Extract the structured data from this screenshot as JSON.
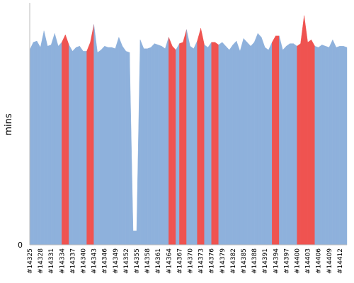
{
  "chart_data": {
    "type": "area",
    "ylabel": "mins",
    "y_ticks": [
      "0"
    ],
    "ylim": [
      0,
      19
    ],
    "colors": {
      "success": "#8eb1dc",
      "failure": "#ef5350",
      "axis": "#bbbbbb"
    },
    "x_tick_labels": [
      "#14325",
      "#14328",
      "#14331",
      "#14334",
      "#14337",
      "#14340",
      "#14343",
      "#14346",
      "#14349",
      "#14352",
      "#14355",
      "#14358",
      "#14361",
      "#14364",
      "#14367",
      "#14370",
      "#14373",
      "#14376",
      "#14379",
      "#14382",
      "#14385",
      "#14388",
      "#14391",
      "#14394",
      "#14397",
      "#14400",
      "#14403",
      "#14406",
      "#14409",
      "#14412"
    ],
    "x": [
      14325,
      14326,
      14327,
      14328,
      14329,
      14330,
      14331,
      14332,
      14333,
      14334,
      14335,
      14336,
      14337,
      14338,
      14339,
      14340,
      14341,
      14342,
      14343,
      14344,
      14345,
      14346,
      14347,
      14348,
      14349,
      14350,
      14351,
      14352,
      14353,
      14354,
      14355,
      14356,
      14357,
      14358,
      14359,
      14360,
      14361,
      14362,
      14363,
      14364,
      14365,
      14366,
      14367,
      14368,
      14369,
      14370,
      14371,
      14372,
      14373,
      14374,
      14375,
      14376,
      14377,
      14378,
      14379,
      14380,
      14381,
      14382,
      14383,
      14384,
      14385,
      14386,
      14387,
      14388,
      14389,
      14390,
      14391,
      14392,
      14393,
      14394,
      14395,
      14396,
      14397,
      14398,
      14399,
      14400,
      14401,
      14402,
      14403,
      14404,
      14405,
      14406,
      14407,
      14408,
      14409,
      14410,
      14411,
      14412,
      14413,
      14414
    ],
    "values": [
      15.3,
      15.9,
      16.0,
      15.5,
      16.8,
      15.6,
      15.7,
      16.6,
      15.6,
      15.9,
      16.5,
      15.7,
      15.2,
      15.5,
      15.6,
      15.2,
      15.2,
      15.9,
      17.3,
      15.1,
      15.3,
      15.6,
      15.5,
      15.5,
      15.4,
      16.3,
      15.6,
      15.2,
      15.1,
      1.1,
      1.1,
      16.1,
      15.4,
      15.4,
      15.5,
      15.8,
      15.7,
      15.6,
      15.4,
      16.3,
      15.6,
      15.3,
      15.8,
      15.9,
      16.9,
      15.6,
      15.4,
      16.0,
      17.0,
      15.7,
      15.5,
      15.9,
      15.9,
      15.7,
      15.9,
      15.6,
      15.3,
      15.7,
      16.0,
      15.2,
      16.2,
      15.9,
      15.6,
      15.9,
      16.6,
      16.3,
      15.5,
      15.3,
      15.9,
      16.4,
      16.4,
      15.3,
      15.6,
      15.8,
      15.8,
      15.6,
      15.8,
      18.0,
      15.9,
      16.1,
      15.6,
      15.5,
      15.7,
      15.6,
      15.5,
      16.1,
      15.5,
      15.6,
      15.6,
      15.5
    ],
    "failed_builds": [
      14334,
      14335,
      14341,
      14342,
      14364,
      14365,
      14367,
      14368,
      14372,
      14373,
      14376,
      14377,
      14393,
      14394,
      14400,
      14401,
      14402,
      14403,
      14404
    ],
    "grid": false,
    "legend": "none"
  }
}
